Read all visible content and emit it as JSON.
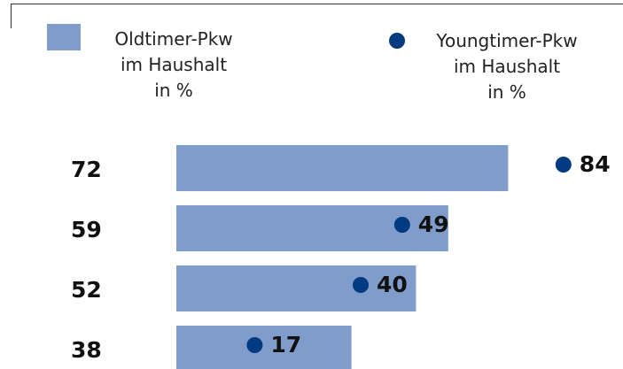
{
  "chart_data": {
    "type": "bar-dot",
    "series": [
      {
        "name": "Oldtimer-Pkw\nim Haushalt\nin %",
        "color": "#7f9ccb",
        "values": [
          72,
          59,
          52,
          38
        ]
      },
      {
        "name": "Youngtimer-Pkw\nim Haushalt\nin %",
        "color": "#003a80",
        "values": [
          84,
          49,
          40,
          17
        ]
      }
    ],
    "xlim": [
      0,
      90
    ]
  }
}
